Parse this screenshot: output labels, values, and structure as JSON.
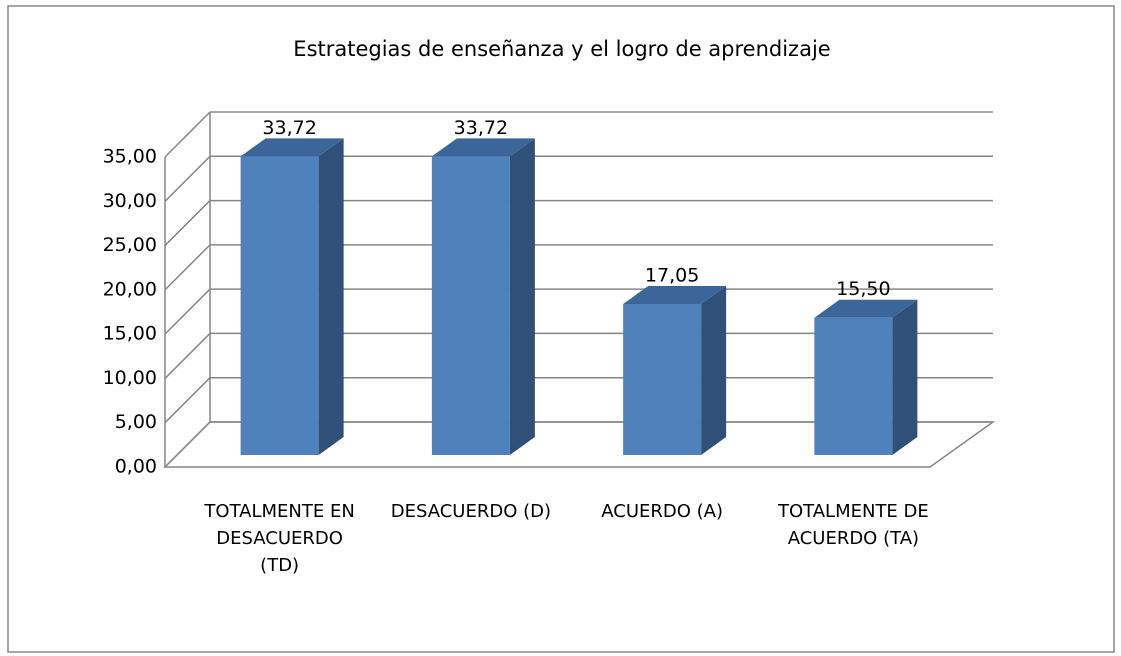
{
  "chart_data": {
    "type": "bar3d",
    "title": "Estrategias de enseñanza y el logro de aprendizaje",
    "categories": [
      "TOTALMENTE EN DESACUERDO (TD)",
      "DESACUERDO (D)",
      "ACUERDO (A)",
      "TOTALMENTE DE ACUERDO (TA)"
    ],
    "values": [
      33.72,
      33.72,
      17.05,
      15.5
    ],
    "value_labels": [
      "33,72",
      "33,72",
      "17,05",
      "15,50"
    ],
    "color": "#4f81bd",
    "ylim": [
      0,
      35
    ],
    "yticks": [
      {
        "value": 0,
        "label": "0,00"
      },
      {
        "value": 5,
        "label": "5,00"
      },
      {
        "value": 10,
        "label": "10,00"
      },
      {
        "value": 15,
        "label": "15,00"
      },
      {
        "value": 20,
        "label": "20,00"
      },
      {
        "value": 25,
        "label": "25,00"
      },
      {
        "value": 30,
        "label": "30,00"
      },
      {
        "value": 35,
        "label": "35,00"
      }
    ],
    "grid": true
  }
}
